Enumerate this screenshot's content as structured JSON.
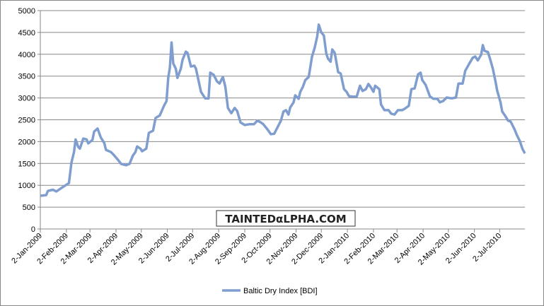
{
  "chart_data": {
    "type": "line",
    "watermark": "TAINTEDαLPHA.COM",
    "x": [
      "2009-01-02",
      "2009-01-09",
      "2009-01-11",
      "2009-01-17",
      "2009-01-21",
      "2009-01-28",
      "2009-02-01",
      "2009-02-05",
      "2009-02-06",
      "2009-02-08",
      "2009-02-11",
      "2009-02-13",
      "2009-02-16",
      "2009-02-18",
      "2009-02-22",
      "2009-02-26",
      "2009-02-28",
      "2009-03-05",
      "2009-03-07",
      "2009-03-11",
      "2009-03-15",
      "2009-03-19",
      "2009-03-21",
      "2009-03-27",
      "2009-03-31",
      "2009-04-04",
      "2009-04-08",
      "2009-04-14",
      "2009-04-18",
      "2009-04-22",
      "2009-04-25",
      "2009-04-27",
      "2009-05-01",
      "2009-05-03",
      "2009-05-08",
      "2009-05-11",
      "2009-05-16",
      "2009-05-19",
      "2009-05-24",
      "2009-05-29",
      "2009-06-01",
      "2009-06-03",
      "2009-06-05",
      "2009-06-07",
      "2009-06-09",
      "2009-06-12",
      "2009-06-14",
      "2009-06-18",
      "2009-06-20",
      "2009-06-24",
      "2009-06-26",
      "2009-06-30",
      "2009-07-04",
      "2009-07-06",
      "2009-07-12",
      "2009-07-17",
      "2009-07-21",
      "2009-07-23",
      "2009-07-27",
      "2009-07-31",
      "2009-08-03",
      "2009-08-07",
      "2009-08-10",
      "2009-08-13",
      "2009-08-17",
      "2009-08-21",
      "2009-08-24",
      "2009-08-28",
      "2009-09-02",
      "2009-09-08",
      "2009-09-13",
      "2009-09-17",
      "2009-09-21",
      "2009-09-24",
      "2009-09-29",
      "2009-10-03",
      "2009-10-07",
      "2009-10-11",
      "2009-10-15",
      "2009-10-18",
      "2009-10-21",
      "2009-10-24",
      "2009-10-26",
      "2009-10-30",
      "2009-11-01",
      "2009-11-05",
      "2009-11-07",
      "2009-11-10",
      "2009-11-13",
      "2009-11-17",
      "2009-11-21",
      "2009-11-24",
      "2009-11-27",
      "2009-11-29",
      "2009-12-02",
      "2009-12-05",
      "2009-12-08",
      "2009-12-10",
      "2009-12-13",
      "2009-12-15",
      "2009-12-18",
      "2009-12-22",
      "2009-12-25",
      "2009-12-29",
      "2010-01-01",
      "2010-01-04",
      "2010-01-09",
      "2010-01-13",
      "2010-01-17",
      "2010-01-20",
      "2010-01-24",
      "2010-01-27",
      "2010-01-30",
      "2010-02-02",
      "2010-02-04",
      "2010-02-09",
      "2010-02-11",
      "2010-02-15",
      "2010-02-20",
      "2010-02-23",
      "2010-02-27",
      "2010-03-03",
      "2010-03-08",
      "2010-03-11",
      "2010-03-16",
      "2010-03-19",
      "2010-03-23",
      "2010-03-27",
      "2010-03-30",
      "2010-04-01",
      "2010-04-05",
      "2010-04-10",
      "2010-04-14",
      "2010-04-19",
      "2010-04-22",
      "2010-04-26",
      "2010-04-30",
      "2010-05-06",
      "2010-05-11",
      "2010-05-14",
      "2010-05-19",
      "2010-05-22",
      "2010-05-27",
      "2010-05-31",
      "2010-06-03",
      "2010-06-06",
      "2010-06-10",
      "2010-06-12",
      "2010-06-14",
      "2010-06-18",
      "2010-06-21",
      "2010-06-24",
      "2010-06-27",
      "2010-06-29",
      "2010-07-03",
      "2010-07-05",
      "2010-07-09",
      "2010-07-12",
      "2010-07-15",
      "2010-07-20",
      "2010-07-22",
      "2010-07-26",
      "2010-07-29",
      "2010-08-01"
    ],
    "series": [
      {
        "name": "Baltic Dry Index [BDI]",
        "color": "#7f9ecf",
        "values": [
          760,
          775,
          870,
          900,
          860,
          950,
          1000,
          1050,
          1200,
          1520,
          1760,
          2050,
          1880,
          1840,
          2070,
          2050,
          1960,
          2040,
          2230,
          2300,
          2090,
          1970,
          1810,
          1760,
          1680,
          1590,
          1490,
          1460,
          1490,
          1680,
          1760,
          1890,
          1840,
          1780,
          1840,
          2200,
          2250,
          2540,
          2600,
          2820,
          2930,
          3460,
          3690,
          4270,
          3790,
          3670,
          3460,
          3670,
          3870,
          4060,
          4030,
          3720,
          3740,
          3670,
          3140,
          2990,
          2990,
          3580,
          3530,
          3380,
          3330,
          3480,
          3250,
          2770,
          2650,
          2770,
          2700,
          2440,
          2380,
          2400,
          2400,
          2480,
          2440,
          2400,
          2280,
          2170,
          2180,
          2330,
          2480,
          2690,
          2720,
          2620,
          2780,
          2900,
          3060,
          2980,
          3140,
          3250,
          3410,
          3480,
          3950,
          4140,
          4400,
          4680,
          4500,
          4430,
          4010,
          3900,
          3830,
          4110,
          4030,
          3590,
          3560,
          3200,
          3140,
          3040,
          3030,
          3030,
          3280,
          3160,
          3200,
          3320,
          3240,
          3140,
          3280,
          3200,
          2850,
          2720,
          2720,
          2640,
          2620,
          2720,
          2720,
          2750,
          2820,
          3200,
          3220,
          3540,
          3580,
          3410,
          3300,
          3040,
          2980,
          2980,
          2900,
          2930,
          3010,
          2990,
          3010,
          3330,
          3330,
          3620,
          3790,
          3920,
          3950,
          3860,
          3990,
          4210,
          4080,
          4050,
          3870,
          3660,
          3380,
          3170,
          2900,
          2690,
          2580,
          2480,
          2460,
          2270,
          2170,
          2010,
          1840,
          1730
        ]
      }
    ],
    "xlim": [
      "2009-01-02",
      "2010-08-01"
    ],
    "xticks": [
      {
        "value": "2009-01-02",
        "label": "2-Jan-2009"
      },
      {
        "value": "2009-02-02",
        "label": "2-Feb-2009"
      },
      {
        "value": "2009-03-02",
        "label": "2-Mar-2009"
      },
      {
        "value": "2009-04-02",
        "label": "2-Apr-2009"
      },
      {
        "value": "2009-05-02",
        "label": "2-May-2009"
      },
      {
        "value": "2009-06-02",
        "label": "2-Jun-2009"
      },
      {
        "value": "2009-07-02",
        "label": "2-Jul-2009"
      },
      {
        "value": "2009-08-02",
        "label": "2-Aug-2009"
      },
      {
        "value": "2009-09-02",
        "label": "2-Sep-2009"
      },
      {
        "value": "2009-10-02",
        "label": "2-Oct-2009"
      },
      {
        "value": "2009-11-02",
        "label": "2-Nov-2009"
      },
      {
        "value": "2009-12-02",
        "label": "2-Dec-2009"
      },
      {
        "value": "2010-01-02",
        "label": "2-Jan-2010"
      },
      {
        "value": "2010-02-02",
        "label": "2-Feb-2010"
      },
      {
        "value": "2010-03-02",
        "label": "2-Mar-2010"
      },
      {
        "value": "2010-04-02",
        "label": "2-Apr-2010"
      },
      {
        "value": "2010-05-02",
        "label": "2-May-2010"
      },
      {
        "value": "2010-06-02",
        "label": "2-Jun-2010"
      },
      {
        "value": "2010-07-02",
        "label": "2-Jul-2010"
      }
    ],
    "ylim": [
      0,
      5000
    ],
    "yticks": [
      0,
      500,
      1000,
      1500,
      2000,
      2500,
      3000,
      3500,
      4000,
      4500,
      5000
    ],
    "grid": true,
    "legend": "bottom"
  }
}
